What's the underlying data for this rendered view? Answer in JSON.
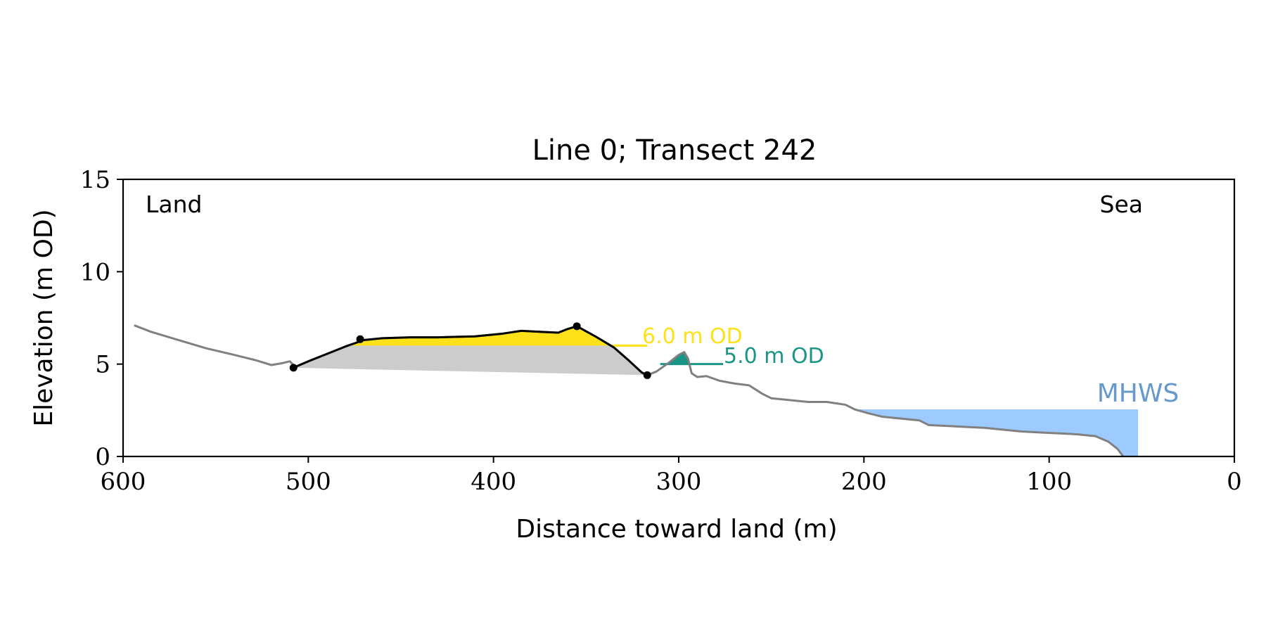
{
  "chart_data": {
    "type": "area",
    "title": "Line 0; Transect 242",
    "xlabel": "Distance toward land (m)",
    "ylabel": "Elevation (m OD)",
    "xlim": [
      600,
      0
    ],
    "ylim": [
      0,
      15
    ],
    "x_reversed": true,
    "xticks": [
      600,
      500,
      400,
      300,
      200,
      100,
      0
    ],
    "yticks": [
      0,
      5,
      10,
      15
    ],
    "grid": false,
    "annotations": {
      "land": "Land",
      "sea": "Sea",
      "mhws": "MHWS",
      "level_6": "6.0 m OD",
      "level_5": "5.0 m OD"
    },
    "colors": {
      "profile": "#808080",
      "dune_outline": "#000000",
      "dune_above_6": "#ffe11a",
      "dune_body": "#cccccc",
      "level_6": "#ffe11a",
      "level_5": "#1b9585",
      "mhws_fill": "#9ecbff",
      "mhws_text": "#6699cc"
    },
    "profile": [
      [
        594,
        7.1
      ],
      [
        585,
        6.75
      ],
      [
        570,
        6.3
      ],
      [
        555,
        5.85
      ],
      [
        540,
        5.5
      ],
      [
        528,
        5.2
      ],
      [
        520,
        4.95
      ],
      [
        514,
        5.05
      ],
      [
        510,
        5.15
      ],
      [
        507,
        4.85
      ],
      [
        500,
        5.15
      ],
      [
        490,
        5.55
      ],
      [
        480,
        5.95
      ],
      [
        470,
        6.3
      ],
      [
        460,
        6.4
      ],
      [
        445,
        6.45
      ],
      [
        430,
        6.45
      ],
      [
        410,
        6.5
      ],
      [
        395,
        6.65
      ],
      [
        385,
        6.8
      ],
      [
        375,
        6.75
      ],
      [
        365,
        6.7
      ],
      [
        360,
        6.9
      ],
      [
        355,
        7.05
      ],
      [
        345,
        6.5
      ],
      [
        335,
        5.9
      ],
      [
        327,
        5.2
      ],
      [
        320,
        4.55
      ],
      [
        317,
        4.4
      ],
      [
        312,
        4.6
      ],
      [
        305,
        5.1
      ],
      [
        300,
        5.5
      ],
      [
        297,
        5.65
      ],
      [
        295,
        5.3
      ],
      [
        293,
        4.5
      ],
      [
        290,
        4.3
      ],
      [
        285,
        4.35
      ],
      [
        278,
        4.1
      ],
      [
        270,
        3.95
      ],
      [
        262,
        3.85
      ],
      [
        255,
        3.4
      ],
      [
        250,
        3.15
      ],
      [
        240,
        3.05
      ],
      [
        230,
        2.95
      ],
      [
        220,
        2.95
      ],
      [
        210,
        2.8
      ],
      [
        205,
        2.55
      ],
      [
        198,
        2.35
      ],
      [
        190,
        2.15
      ],
      [
        180,
        2.05
      ],
      [
        170,
        1.95
      ],
      [
        165,
        1.7
      ],
      [
        155,
        1.65
      ],
      [
        145,
        1.6
      ],
      [
        135,
        1.55
      ],
      [
        125,
        1.45
      ],
      [
        115,
        1.35
      ],
      [
        105,
        1.3
      ],
      [
        95,
        1.25
      ],
      [
        85,
        1.2
      ],
      [
        75,
        1.1
      ],
      [
        68,
        0.8
      ],
      [
        63,
        0.4
      ],
      [
        60,
        0.0
      ]
    ],
    "dune_points": [
      [
        508,
        4.8
      ],
      [
        472,
        6.35
      ],
      [
        355,
        7.05
      ],
      [
        317,
        4.4
      ]
    ],
    "dune_base": [
      [
        508,
        4.8
      ],
      [
        317,
        4.4
      ]
    ],
    "level_6_line": {
      "elevation": 6.0,
      "x_from": 337,
      "x_to": 317
    },
    "level_5_line": {
      "elevation": 5.0,
      "x_from": 310,
      "x_to": 276
    },
    "mhws": {
      "elevation": 2.55,
      "x_from": 205,
      "x_to": 52
    }
  }
}
